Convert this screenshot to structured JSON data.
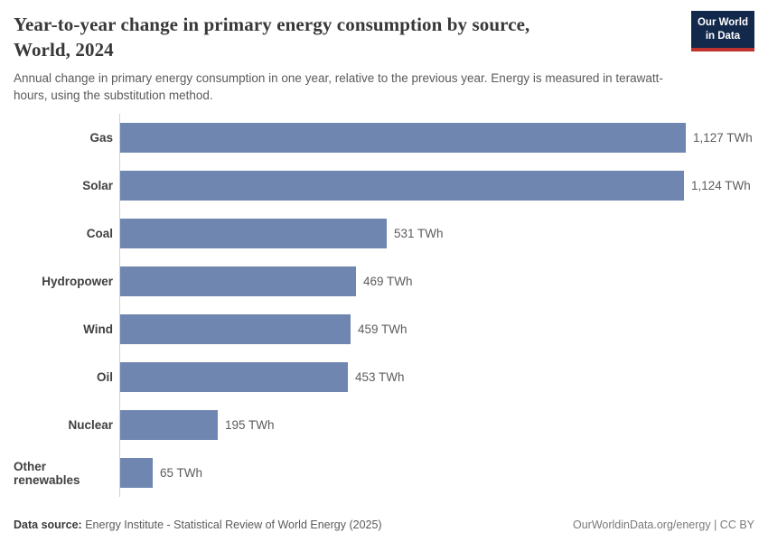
{
  "header": {
    "title": "Year-to-year change in primary energy consumption by source, World, 2024",
    "title_lines": [
      "Year-to-year change in primary energy consumption by source,",
      "World, 2024"
    ],
    "subtitle": "Annual change in primary energy consumption in one year, relative to the previous year. Energy is measured in terawatt-hours, using the substitution method.",
    "logo": {
      "line1": "Our World",
      "line2": "in Data",
      "bg_color": "#13294b",
      "accent_color": "#c0342f"
    }
  },
  "chart_data": {
    "type": "bar",
    "orientation": "horizontal",
    "title": "Year-to-year change in primary energy consumption by source, World, 2024",
    "xlabel": "",
    "ylabel": "",
    "unit": "TWh",
    "xlim": [
      0,
      1127
    ],
    "grid": false,
    "legend": false,
    "bar_color": "#6e86b0",
    "axis_line_color": "#cfcfcf",
    "categories": [
      "Gas",
      "Solar",
      "Coal",
      "Hydropower",
      "Wind",
      "Oil",
      "Nuclear",
      "Other renewables"
    ],
    "values": [
      1127,
      1124,
      531,
      469,
      459,
      453,
      195,
      65
    ],
    "value_labels": [
      "1,127 TWh",
      "1,124 TWh",
      "531 TWh",
      "469 TWh",
      "459 TWh",
      "453 TWh",
      "195 TWh",
      "65 TWh"
    ]
  },
  "footer": {
    "data_source_label": "Data source:",
    "data_source_text": " Energy Institute - Statistical Review of World Energy (2025)",
    "credit": "OurWorldinData.org/energy | CC BY"
  }
}
